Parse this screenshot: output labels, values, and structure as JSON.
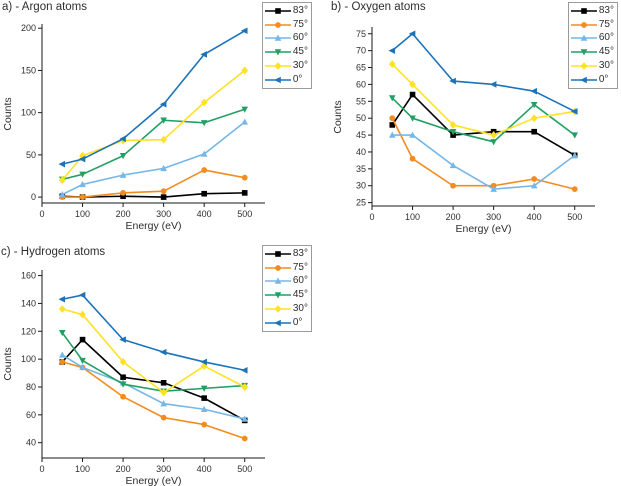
{
  "page": {
    "background": "#ffffff",
    "text_color": "#2e2e2e",
    "axis_color": "#1a1a1a",
    "legend_border": "#9a9a9a"
  },
  "chart_data": [
    {
      "type": "line",
      "title": "a) - Argon atoms",
      "xlabel": "Energy (eV)",
      "ylabel": "Counts",
      "x": [
        50,
        100,
        200,
        300,
        400,
        500
      ],
      "xlim": [
        0,
        550
      ],
      "xticks": [
        0,
        100,
        200,
        300,
        400,
        500
      ],
      "ylim": [
        -7,
        205
      ],
      "yticks": [
        0,
        50,
        100,
        150,
        200
      ],
      "grid": false,
      "legend_position": "top-right",
      "series": [
        {
          "name": "83°",
          "color": "#000000",
          "marker": "square",
          "values": [
            1,
            0,
            1,
            0,
            4,
            5
          ]
        },
        {
          "name": "75°",
          "color": "#F28C1E",
          "marker": "circle",
          "values": [
            0,
            0,
            5,
            7,
            32,
            23
          ]
        },
        {
          "name": "60°",
          "color": "#74B7E8",
          "marker": "triangle-up",
          "values": [
            3,
            15,
            26,
            34,
            51,
            89
          ]
        },
        {
          "name": "45°",
          "color": "#22A063",
          "marker": "triangle-down",
          "values": [
            21,
            27,
            49,
            91,
            88,
            104
          ]
        },
        {
          "name": "30°",
          "color": "#FFE226",
          "marker": "diamond",
          "values": [
            20,
            49,
            67,
            68,
            112,
            150
          ]
        },
        {
          "name": "0°",
          "color": "#1C73B9",
          "marker": "triangle-left",
          "values": [
            39,
            45,
            69,
            110,
            169,
            197
          ]
        }
      ]
    },
    {
      "type": "line",
      "title": "b) - Oxygen atoms",
      "xlabel": "Energy (eV)",
      "ylabel": "Counts",
      "x": [
        50,
        100,
        200,
        300,
        400,
        500
      ],
      "xlim": [
        0,
        550
      ],
      "xticks": [
        0,
        100,
        200,
        300,
        400,
        500
      ],
      "ylim": [
        24,
        77
      ],
      "yticks": [
        25,
        30,
        35,
        40,
        45,
        50,
        55,
        60,
        65,
        70,
        75
      ],
      "grid": false,
      "legend_position": "top-right",
      "series": [
        {
          "name": "83°",
          "color": "#000000",
          "marker": "square",
          "values": [
            48,
            57,
            45,
            46,
            46,
            39
          ]
        },
        {
          "name": "75°",
          "color": "#F28C1E",
          "marker": "circle",
          "values": [
            50,
            38,
            30,
            30,
            32,
            29
          ]
        },
        {
          "name": "60°",
          "color": "#74B7E8",
          "marker": "triangle-up",
          "values": [
            45,
            45,
            36,
            29,
            30,
            39
          ]
        },
        {
          "name": "45°",
          "color": "#22A063",
          "marker": "triangle-down",
          "values": [
            56,
            50,
            46,
            43,
            54,
            45
          ]
        },
        {
          "name": "30°",
          "color": "#FFE226",
          "marker": "diamond",
          "values": [
            66,
            60,
            48,
            45,
            50,
            52
          ]
        },
        {
          "name": "0°",
          "color": "#1C73B9",
          "marker": "triangle-left",
          "values": [
            70,
            75,
            61,
            60,
            58,
            52
          ]
        }
      ]
    },
    {
      "type": "line",
      "title": "c) - Hydrogen atoms",
      "xlabel": "Energy (eV)",
      "ylabel": "Counts",
      "x": [
        50,
        100,
        200,
        300,
        400,
        500
      ],
      "xlim": [
        0,
        550
      ],
      "xticks": [
        0,
        100,
        200,
        300,
        400,
        500
      ],
      "ylim": [
        29,
        164
      ],
      "yticks": [
        40,
        60,
        80,
        100,
        120,
        140,
        160
      ],
      "grid": false,
      "legend_position": "top-right",
      "series": [
        {
          "name": "83°",
          "color": "#000000",
          "marker": "square",
          "values": [
            98,
            114,
            87,
            83,
            72,
            56
          ]
        },
        {
          "name": "75°",
          "color": "#F28C1E",
          "marker": "circle",
          "values": [
            98,
            94,
            73,
            58,
            53,
            43
          ]
        },
        {
          "name": "60°",
          "color": "#74B7E8",
          "marker": "triangle-up",
          "values": [
            103,
            94,
            83,
            68,
            64,
            57
          ]
        },
        {
          "name": "45°",
          "color": "#22A063",
          "marker": "triangle-down",
          "values": [
            119,
            99,
            82,
            77,
            79,
            81
          ]
        },
        {
          "name": "30°",
          "color": "#FFE226",
          "marker": "diamond",
          "values": [
            136,
            132,
            98,
            76,
            95,
            80
          ]
        },
        {
          "name": "0°",
          "color": "#1C73B9",
          "marker": "triangle-left",
          "values": [
            143,
            146,
            114,
            105,
            98,
            92
          ]
        }
      ]
    }
  ]
}
